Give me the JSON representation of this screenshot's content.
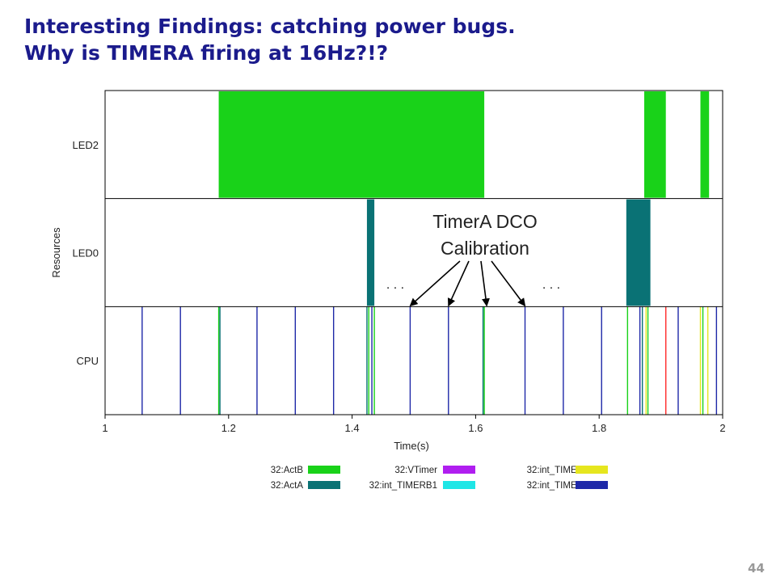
{
  "slide": {
    "title_line1": "Interesting Findings: catching power bugs.",
    "title_line2": "Why is TIMERA firing at 16Hz?!?",
    "slide_number": "44"
  },
  "chart_data": {
    "type": "timeline",
    "title": "",
    "xlabel": "Time(s)",
    "ylabel": "Resources",
    "xlim": [
      1,
      2
    ],
    "x_ticks": [
      1,
      1.2,
      1.4,
      1.6,
      1.8,
      2
    ],
    "x_tick_labels": [
      "1",
      "1.2",
      "1.4",
      "1.6",
      "1.8",
      "2"
    ],
    "rows": [
      "LED2",
      "LED0",
      "CPU"
    ],
    "colors": {
      "32:ActB": "#19d219",
      "32:ActA": "#0a7275",
      "32:VTimer": "#b01ef0",
      "32:int_TIMERB1": "#1ee6e6",
      "32:int_TIMERB0": "#e6e61e",
      "32:int_TIMERA1": "#1e28a8",
      "red_event": "#ff2a2a"
    },
    "legend": [
      {
        "label": "32:ActB",
        "key": "32:ActB"
      },
      {
        "label": "32:ActA",
        "key": "32:ActA"
      },
      {
        "label": "32:VTimer",
        "key": "32:VTimer"
      },
      {
        "label": "32:int_TIMERB1",
        "key": "32:int_TIMERB1"
      },
      {
        "label": "32:int_TIMERB0",
        "key": "32:int_TIMERB0"
      },
      {
        "label": "32:int_TIMERA1",
        "key": "32:int_TIMERA1"
      }
    ],
    "legend_placement": "bottom",
    "intervals": [
      {
        "row": "LED2",
        "start": 1.184,
        "end": 1.614,
        "series": "32:ActB"
      },
      {
        "row": "LED2",
        "start": 1.873,
        "end": 1.908,
        "series": "32:ActB"
      },
      {
        "row": "LED2",
        "start": 1.964,
        "end": 1.978,
        "series": "32:ActB"
      },
      {
        "row": "LED0",
        "start": 1.424,
        "end": 1.436,
        "series": "32:ActA"
      },
      {
        "row": "LED0",
        "start": 1.844,
        "end": 1.883,
        "series": "32:ActA"
      }
    ],
    "cpu_events": [
      {
        "t": 1.06,
        "series": "32:int_TIMERA1"
      },
      {
        "t": 1.122,
        "series": "32:int_TIMERA1"
      },
      {
        "t": 1.184,
        "series": "32:ActB"
      },
      {
        "t": 1.186,
        "series": "32:ActA"
      },
      {
        "t": 1.246,
        "series": "32:int_TIMERA1"
      },
      {
        "t": 1.308,
        "series": "32:int_TIMERA1"
      },
      {
        "t": 1.37,
        "series": "32:int_TIMERA1"
      },
      {
        "t": 1.432,
        "series": "32:int_TIMERA1"
      },
      {
        "t": 1.424,
        "series": "32:ActA"
      },
      {
        "t": 1.427,
        "series": "32:ActB"
      },
      {
        "t": 1.436,
        "series": "32:ActB"
      },
      {
        "t": 1.494,
        "series": "32:int_TIMERA1"
      },
      {
        "t": 1.556,
        "series": "32:int_TIMERA1"
      },
      {
        "t": 1.612,
        "series": "32:ActA"
      },
      {
        "t": 1.614,
        "series": "32:ActB"
      },
      {
        "t": 1.68,
        "series": "32:int_TIMERA1"
      },
      {
        "t": 1.742,
        "series": "32:int_TIMERA1"
      },
      {
        "t": 1.804,
        "series": "32:int_TIMERA1"
      },
      {
        "t": 1.846,
        "series": "32:ActB"
      },
      {
        "t": 1.866,
        "series": "32:int_TIMERA1"
      },
      {
        "t": 1.87,
        "series": "32:ActA"
      },
      {
        "t": 1.876,
        "series": "32:int_TIMERB0"
      },
      {
        "t": 1.879,
        "series": "32:ActB"
      },
      {
        "t": 1.908,
        "series": "red_event"
      },
      {
        "t": 1.928,
        "series": "32:int_TIMERA1"
      },
      {
        "t": 1.964,
        "series": "32:int_TIMERB0"
      },
      {
        "t": 1.968,
        "series": "32:ActB"
      },
      {
        "t": 1.976,
        "series": "32:int_TIMERB0"
      },
      {
        "t": 1.99,
        "series": "32:int_TIMERA1"
      }
    ],
    "annotation": {
      "text_line1": "TimerA DCO",
      "text_line2": "Calibration",
      "ellipsis_left": ". . .",
      "ellipsis_right": ". . .",
      "arrow_targets": [
        1.494,
        1.556,
        1.618,
        1.68
      ]
    }
  }
}
